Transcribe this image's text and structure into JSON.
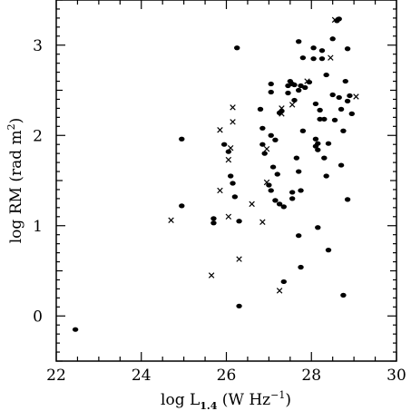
{
  "chart_data": {
    "type": "scatter",
    "xlabel": {
      "main": "log L",
      "sub": "1.4",
      "rest": " (W Hz",
      "sup": "−1",
      "close": ")"
    },
    "ylabel": {
      "main": "log RM (rad m",
      "sup": "2",
      "close": ")"
    },
    "xlim": [
      22,
      30
    ],
    "ylim": [
      -0.5,
      3.5
    ],
    "xticks": [
      22,
      24,
      26,
      28,
      30
    ],
    "yticks": [
      0,
      1,
      2,
      3
    ],
    "grid": false,
    "series": [
      {
        "marker": "dot",
        "points": [
          [
            22.45,
            -0.15
          ],
          [
            24.95,
            1.96
          ],
          [
            24.95,
            1.22
          ],
          [
            25.7,
            1.08
          ],
          [
            25.7,
            1.03
          ],
          [
            25.95,
            1.9
          ],
          [
            26.05,
            1.82
          ],
          [
            26.1,
            1.55
          ],
          [
            26.15,
            1.47
          ],
          [
            26.2,
            1.32
          ],
          [
            26.25,
            2.97
          ],
          [
            26.3,
            1.05
          ],
          [
            26.3,
            0.11
          ],
          [
            26.8,
            2.29
          ],
          [
            26.85,
            1.9
          ],
          [
            26.85,
            2.08
          ],
          [
            26.9,
            1.8
          ],
          [
            27.0,
            1.45
          ],
          [
            27.05,
            1.39
          ],
          [
            27.05,
            2.57
          ],
          [
            27.05,
            2.48
          ],
          [
            27.05,
            2.0
          ],
          [
            27.1,
            1.65
          ],
          [
            27.15,
            1.95
          ],
          [
            27.15,
            1.28
          ],
          [
            27.2,
            1.57
          ],
          [
            27.25,
            2.25
          ],
          [
            27.25,
            1.24
          ],
          [
            27.3,
            2.27
          ],
          [
            27.35,
            1.21
          ],
          [
            27.35,
            0.38
          ],
          [
            27.45,
            2.55
          ],
          [
            27.45,
            2.47
          ],
          [
            27.5,
            2.6
          ],
          [
            27.55,
            2.57
          ],
          [
            27.55,
            1.3
          ],
          [
            27.55,
            1.37
          ],
          [
            27.6,
            2.56
          ],
          [
            27.6,
            2.39
          ],
          [
            27.65,
            1.75
          ],
          [
            27.7,
            2.5
          ],
          [
            27.7,
            1.6
          ],
          [
            27.75,
            2.55
          ],
          [
            27.7,
            3.04
          ],
          [
            27.7,
            0.89
          ],
          [
            27.75,
            0.54
          ],
          [
            27.75,
            1.39
          ],
          [
            27.8,
            2.05
          ],
          [
            27.8,
            2.86
          ],
          [
            27.85,
            2.53
          ],
          [
            27.95,
            2.59
          ],
          [
            28.05,
            2.97
          ],
          [
            28.05,
            2.85
          ],
          [
            28.1,
            2.35
          ],
          [
            28.1,
            1.96
          ],
          [
            28.1,
            1.88
          ],
          [
            28.15,
            1.91
          ],
          [
            28.15,
            1.84
          ],
          [
            28.15,
            0.98
          ],
          [
            28.2,
            2.18
          ],
          [
            28.2,
            2.28
          ],
          [
            28.25,
            2.94
          ],
          [
            28.25,
            2.85
          ],
          [
            28.3,
            2.18
          ],
          [
            28.3,
            1.75
          ],
          [
            28.35,
            2.67
          ],
          [
            28.35,
            1.55
          ],
          [
            28.4,
            1.91
          ],
          [
            28.4,
            0.73
          ],
          [
            28.5,
            3.07
          ],
          [
            28.5,
            2.45
          ],
          [
            28.55,
            2.17
          ],
          [
            28.6,
            3.27
          ],
          [
            28.65,
            3.29
          ],
          [
            28.65,
            2.42
          ],
          [
            28.7,
            1.67
          ],
          [
            28.7,
            2.29
          ],
          [
            28.75,
            2.05
          ],
          [
            28.75,
            0.23
          ],
          [
            28.8,
            2.6
          ],
          [
            28.85,
            2.38
          ],
          [
            28.85,
            2.96
          ],
          [
            28.85,
            1.29
          ],
          [
            28.95,
            2.24
          ],
          [
            28.9,
            2.44
          ]
        ]
      },
      {
        "marker": "cross",
        "points": [
          [
            24.7,
            1.06
          ],
          [
            25.65,
            0.45
          ],
          [
            25.85,
            2.06
          ],
          [
            25.85,
            1.39
          ],
          [
            26.05,
            1.1
          ],
          [
            26.05,
            1.73
          ],
          [
            26.1,
            1.86
          ],
          [
            26.15,
            2.15
          ],
          [
            26.15,
            2.31
          ],
          [
            26.3,
            0.63
          ],
          [
            26.6,
            1.24
          ],
          [
            26.85,
            1.04
          ],
          [
            26.95,
            1.85
          ],
          [
            26.95,
            1.48
          ],
          [
            27.25,
            0.28
          ],
          [
            27.3,
            2.24
          ],
          [
            27.3,
            2.3
          ],
          [
            27.55,
            2.34
          ],
          [
            27.9,
            2.6
          ],
          [
            28.45,
            2.86
          ],
          [
            28.55,
            3.28
          ],
          [
            29.05,
            2.43
          ]
        ]
      }
    ]
  }
}
